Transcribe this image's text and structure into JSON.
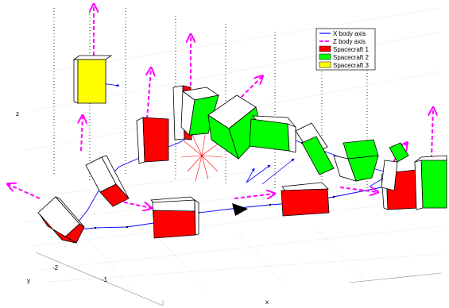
{
  "chart_data": {
    "type": "scatter",
    "subtype": "3d-trajectory",
    "title": "",
    "axes": {
      "xlabel": "x",
      "ylabel": "y",
      "zlabel": "z",
      "y_ticks": [
        "-2",
        "-1"
      ]
    },
    "grid": true,
    "legend_position": "top-right",
    "legend": [
      {
        "label": "X body axis",
        "color": "#0000ff",
        "style": "line"
      },
      {
        "label": "Z body axis",
        "color": "#ff00ff",
        "style": "dashed-line"
      },
      {
        "label": "Spacecraft 1",
        "color": "#ff0000",
        "style": "patch"
      },
      {
        "label": "Spacecraft 2",
        "color": "#00ff00",
        "style": "patch"
      },
      {
        "label": "Spacecraft 3",
        "color": "#ffff00",
        "style": "patch"
      }
    ],
    "colors": {
      "x_axis": "#0000ff",
      "z_axis": "#ff00ff",
      "spacecraft_1": "#ff0000",
      "spacecraft_2": "#00ff00",
      "spacecraft_3": "#ffff00"
    }
  }
}
